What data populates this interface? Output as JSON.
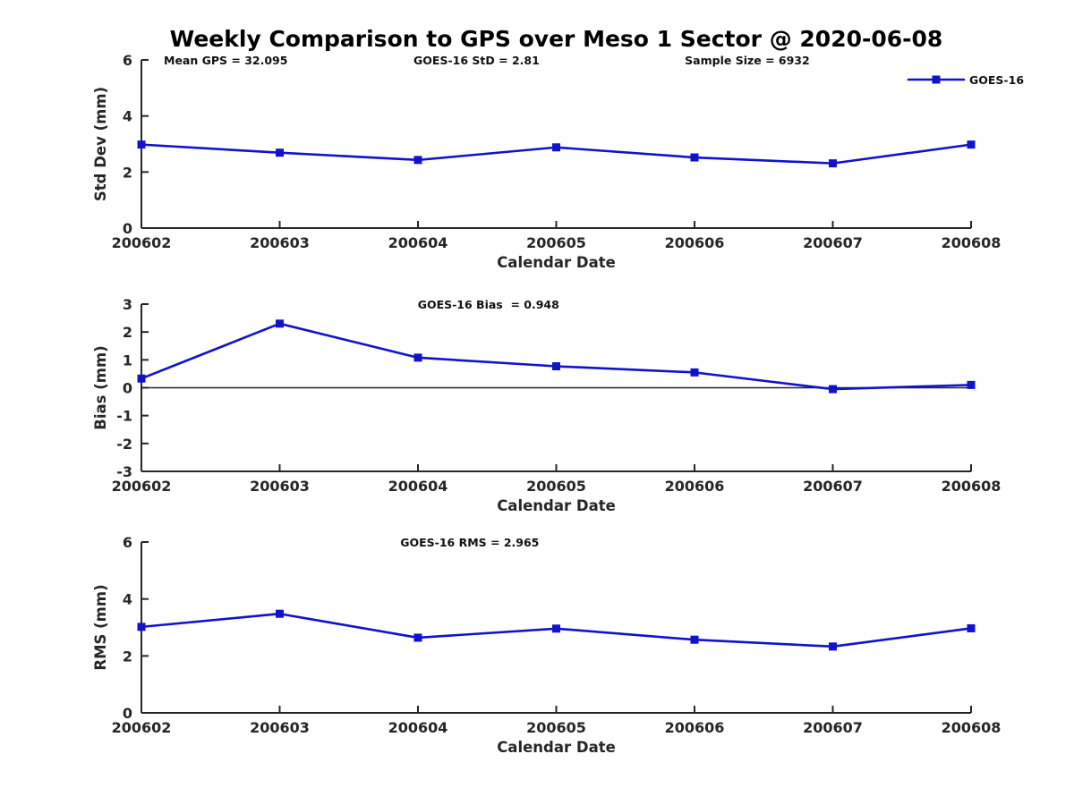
{
  "figure": {
    "title": "Weekly Comparison to GPS over Meso 1 Sector @ 2020-06-08",
    "background": "#ffffff"
  },
  "colors": {
    "series_blue": "#1112cc",
    "axis": "#262626",
    "text": "#111111"
  },
  "chart_data": [
    {
      "id": "std-dev",
      "type": "line",
      "title": "",
      "ylabel": "Std Dev (mm)",
      "xlabel": "Calendar Date",
      "categories": [
        "200602",
        "200603",
        "200604",
        "200605",
        "200606",
        "200607",
        "200608"
      ],
      "series": [
        {
          "name": "GOES-16",
          "color": "#1112cc",
          "marker": "square",
          "values": [
            2.98,
            2.69,
            2.43,
            2.88,
            2.52,
            2.31,
            2.98
          ]
        }
      ],
      "ylim": [
        0,
        6
      ],
      "yticks": [
        0,
        2,
        4,
        6
      ],
      "grid": false,
      "annotations": [
        {
          "text": "Mean GPS = 32.095",
          "x_frac": 0.027
        },
        {
          "text": "GOES-16 StD = 2.81",
          "x_frac": 0.328
        },
        {
          "text": "Sample Size = 6932",
          "x_frac": 0.655
        }
      ],
      "legend": {
        "visible": true,
        "label": "GOES-16",
        "position": "top-right"
      }
    },
    {
      "id": "bias",
      "type": "line",
      "title": "GOES-16 Bias  = 0.948",
      "title_x_frac": 0.333,
      "ylabel": "Bias (mm)",
      "xlabel": "Calendar Date",
      "categories": [
        "200602",
        "200603",
        "200604",
        "200605",
        "200606",
        "200607",
        "200608"
      ],
      "series": [
        {
          "name": "GOES-16",
          "color": "#1112cc",
          "marker": "square",
          "values": [
            0.33,
            2.3,
            1.08,
            0.77,
            0.55,
            -0.05,
            0.1
          ]
        }
      ],
      "ylim": [
        -3,
        3
      ],
      "yticks": [
        3,
        2,
        1,
        0,
        -1,
        -2,
        -3
      ],
      "zero_line": true,
      "grid": false,
      "annotations": [],
      "legend": {
        "visible": false
      }
    },
    {
      "id": "rms",
      "type": "line",
      "title": "GOES-16 RMS = 2.965",
      "title_x_frac": 0.312,
      "ylabel": "RMS (mm)",
      "xlabel": "Calendar Date",
      "categories": [
        "200602",
        "200603",
        "200604",
        "200605",
        "200606",
        "200607",
        "200608"
      ],
      "series": [
        {
          "name": "GOES-16",
          "color": "#1112cc",
          "marker": "square",
          "values": [
            3.02,
            3.48,
            2.64,
            2.96,
            2.57,
            2.33,
            2.97
          ]
        }
      ],
      "ylim": [
        0,
        6
      ],
      "yticks": [
        6,
        4,
        2,
        0
      ],
      "grid": false,
      "annotations": [],
      "legend": {
        "visible": false
      }
    }
  ]
}
